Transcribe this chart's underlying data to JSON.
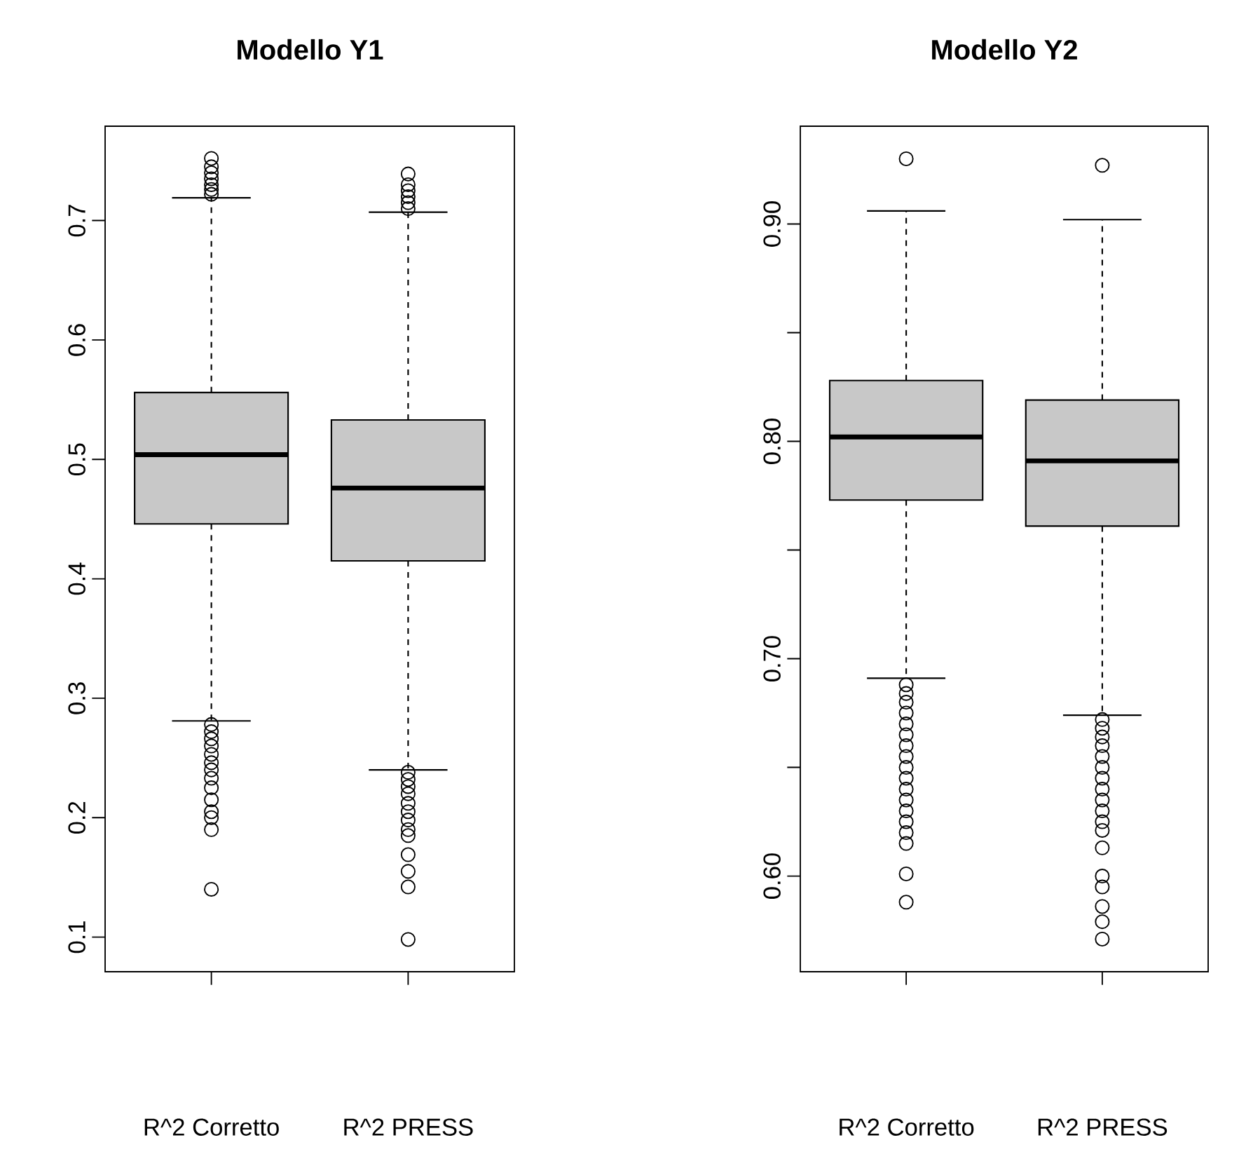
{
  "chart_data": [
    {
      "type": "box",
      "title": "Modello Y1",
      "categories": [
        "R^2 Corretto",
        "R^2 PRESS"
      ],
      "ylim": [
        0.071,
        0.779
      ],
      "yticks": [
        0.1,
        0.2,
        0.3,
        0.4,
        0.5,
        0.6,
        0.7
      ],
      "series": [
        {
          "color": "#c8c8c8",
          "boxes": [
            {
              "low": 0.281,
              "q1": 0.446,
              "median": 0.504,
              "q3": 0.556,
              "high": 0.719,
              "outliers": [
                0.722,
                0.726,
                0.73,
                0.735,
                0.74,
                0.745,
                0.752,
                0.278,
                0.272,
                0.266,
                0.26,
                0.253,
                0.246,
                0.24,
                0.233,
                0.225,
                0.215,
                0.205,
                0.2,
                0.19,
                0.14
              ]
            },
            {
              "low": 0.24,
              "q1": 0.415,
              "median": 0.476,
              "q3": 0.533,
              "high": 0.707,
              "outliers": [
                0.71,
                0.715,
                0.72,
                0.725,
                0.73,
                0.739,
                0.238,
                0.232,
                0.226,
                0.22,
                0.212,
                0.205,
                0.198,
                0.19,
                0.185,
                0.169,
                0.155,
                0.142,
                0.098
              ]
            }
          ]
        }
      ]
    },
    {
      "type": "box",
      "title": "Modello Y2",
      "categories": [
        "R^2 Corretto",
        "R^2 PRESS"
      ],
      "ylim": [
        0.556,
        0.945
      ],
      "yticks": [
        {
          "value": 0.6,
          "label": "0.60"
        },
        {
          "value": 0.65,
          "label": null
        },
        {
          "value": 0.7,
          "label": "0.70"
        },
        {
          "value": 0.75,
          "label": null
        },
        {
          "value": 0.8,
          "label": "0.80"
        },
        {
          "value": 0.85,
          "label": null
        },
        {
          "value": 0.9,
          "label": "0.90"
        }
      ],
      "series": [
        {
          "color": "#c8c8c8",
          "boxes": [
            {
              "low": 0.691,
              "q1": 0.773,
              "median": 0.802,
              "q3": 0.828,
              "high": 0.906,
              "outliers": [
                0.93,
                0.688,
                0.684,
                0.68,
                0.675,
                0.67,
                0.665,
                0.66,
                0.655,
                0.65,
                0.645,
                0.64,
                0.635,
                0.63,
                0.625,
                0.62,
                0.615,
                0.601,
                0.588
              ]
            },
            {
              "low": 0.674,
              "q1": 0.761,
              "median": 0.791,
              "q3": 0.819,
              "high": 0.902,
              "outliers": [
                0.927,
                0.672,
                0.668,
                0.664,
                0.66,
                0.655,
                0.65,
                0.645,
                0.64,
                0.635,
                0.63,
                0.625,
                0.621,
                0.613,
                0.6,
                0.595,
                0.586,
                0.579,
                0.571
              ]
            }
          ]
        }
      ]
    }
  ]
}
